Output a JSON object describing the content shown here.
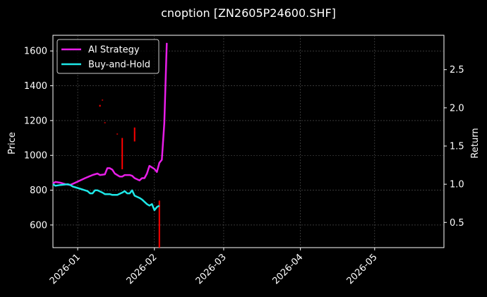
{
  "chart_data": {
    "type": "line",
    "title": "cnoption [ZN2605P24600.SHF]",
    "xlabel": "",
    "ylabel_left": "Price",
    "ylabel_right": "Return",
    "x_range": [
      "2025-12-22",
      "2026-05-29"
    ],
    "x_ticks": [
      "2026-01",
      "2026-02",
      "2026-03",
      "2026-04",
      "2026-05"
    ],
    "ylim_left": [
      470,
      1690
    ],
    "yticks_left": [
      600,
      800,
      1000,
      1200,
      1400,
      1600
    ],
    "ylim_right": [
      0.17,
      2.95
    ],
    "yticks_right": [
      0.5,
      1.0,
      1.5,
      2.0,
      2.5
    ],
    "grid": true,
    "legend_position": "top-left",
    "series": [
      {
        "name": "AI Strategy",
        "axis": "right",
        "color": "#e81ee8",
        "points": [
          [
            "2025-12-22",
            1.01
          ],
          [
            "2025-12-23",
            1.03
          ],
          [
            "2025-12-25",
            1.02
          ],
          [
            "2025-12-27",
            1.0
          ],
          [
            "2025-12-29",
            0.99
          ],
          [
            "2025-12-31",
            1.02
          ],
          [
            "2026-01-02",
            1.05
          ],
          [
            "2026-01-04",
            1.08
          ],
          [
            "2026-01-07",
            1.12
          ],
          [
            "2026-01-09",
            1.14
          ],
          [
            "2026-01-10",
            1.12
          ],
          [
            "2026-01-12",
            1.13
          ],
          [
            "2026-01-13",
            1.21
          ],
          [
            "2026-01-14",
            1.21
          ],
          [
            "2026-01-15",
            1.19
          ],
          [
            "2026-01-16",
            1.14
          ],
          [
            "2026-01-18",
            1.1
          ],
          [
            "2026-01-19",
            1.1
          ],
          [
            "2026-01-20",
            1.12
          ],
          [
            "2026-01-22",
            1.12
          ],
          [
            "2026-01-23",
            1.11
          ],
          [
            "2026-01-24",
            1.08
          ],
          [
            "2026-01-26",
            1.05
          ],
          [
            "2026-01-27",
            1.08
          ],
          [
            "2026-01-28",
            1.08
          ],
          [
            "2026-01-29",
            1.14
          ],
          [
            "2026-01-30",
            1.24
          ],
          [
            "2026-01-31",
            1.22
          ],
          [
            "2026-02-01",
            1.2
          ],
          [
            "2026-02-02",
            1.16
          ],
          [
            "2026-02-03",
            1.28
          ],
          [
            "2026-02-04",
            1.32
          ],
          [
            "2026-02-05",
            1.8
          ],
          [
            "2026-02-06",
            2.85
          ]
        ]
      },
      {
        "name": "Buy-and-Hold",
        "axis": "right",
        "color": "#1ee8e8",
        "points": [
          [
            "2025-12-22",
            1.0
          ],
          [
            "2025-12-23",
            0.98
          ],
          [
            "2025-12-25",
            0.99
          ],
          [
            "2025-12-28",
            1.0
          ],
          [
            "2025-12-29",
            0.99
          ],
          [
            "2025-12-30",
            0.97
          ],
          [
            "2026-01-01",
            0.95
          ],
          [
            "2026-01-03",
            0.93
          ],
          [
            "2026-01-05",
            0.91
          ],
          [
            "2026-01-06",
            0.88
          ],
          [
            "2026-01-07",
            0.88
          ],
          [
            "2026-01-08",
            0.92
          ],
          [
            "2026-01-09",
            0.92
          ],
          [
            "2026-01-11",
            0.89
          ],
          [
            "2026-01-12",
            0.87
          ],
          [
            "2026-01-14",
            0.87
          ],
          [
            "2026-01-15",
            0.86
          ],
          [
            "2026-01-16",
            0.86
          ],
          [
            "2026-01-17",
            0.86
          ],
          [
            "2026-01-19",
            0.89
          ],
          [
            "2026-01-20",
            0.91
          ],
          [
            "2026-01-21",
            0.88
          ],
          [
            "2026-01-22",
            0.88
          ],
          [
            "2026-01-23",
            0.92
          ],
          [
            "2026-01-24",
            0.85
          ],
          [
            "2026-01-26",
            0.82
          ],
          [
            "2026-01-27",
            0.8
          ],
          [
            "2026-01-29",
            0.74
          ],
          [
            "2026-01-30",
            0.72
          ],
          [
            "2026-01-31",
            0.74
          ],
          [
            "2026-02-01",
            0.66
          ],
          [
            "2026-02-02",
            0.7
          ],
          [
            "2026-02-03",
            0.72
          ]
        ]
      }
    ],
    "price_marks": {
      "axis": "left",
      "color": "#ff0000",
      "segments": [
        [
          "2026-01-19",
          920,
          1100
        ],
        [
          "2026-01-24",
          1080,
          1140
        ],
        [
          "2026-01-24",
          1140,
          1160
        ],
        [
          "2026-01-10",
          1280,
          1290
        ],
        [
          "2026-01-11",
          1315,
          1320
        ],
        [
          "2026-01-12",
          1185,
          1190
        ],
        [
          "2026-01-17",
          1120,
          1125
        ],
        [
          "2026-02-03",
          470,
          740
        ]
      ]
    }
  }
}
